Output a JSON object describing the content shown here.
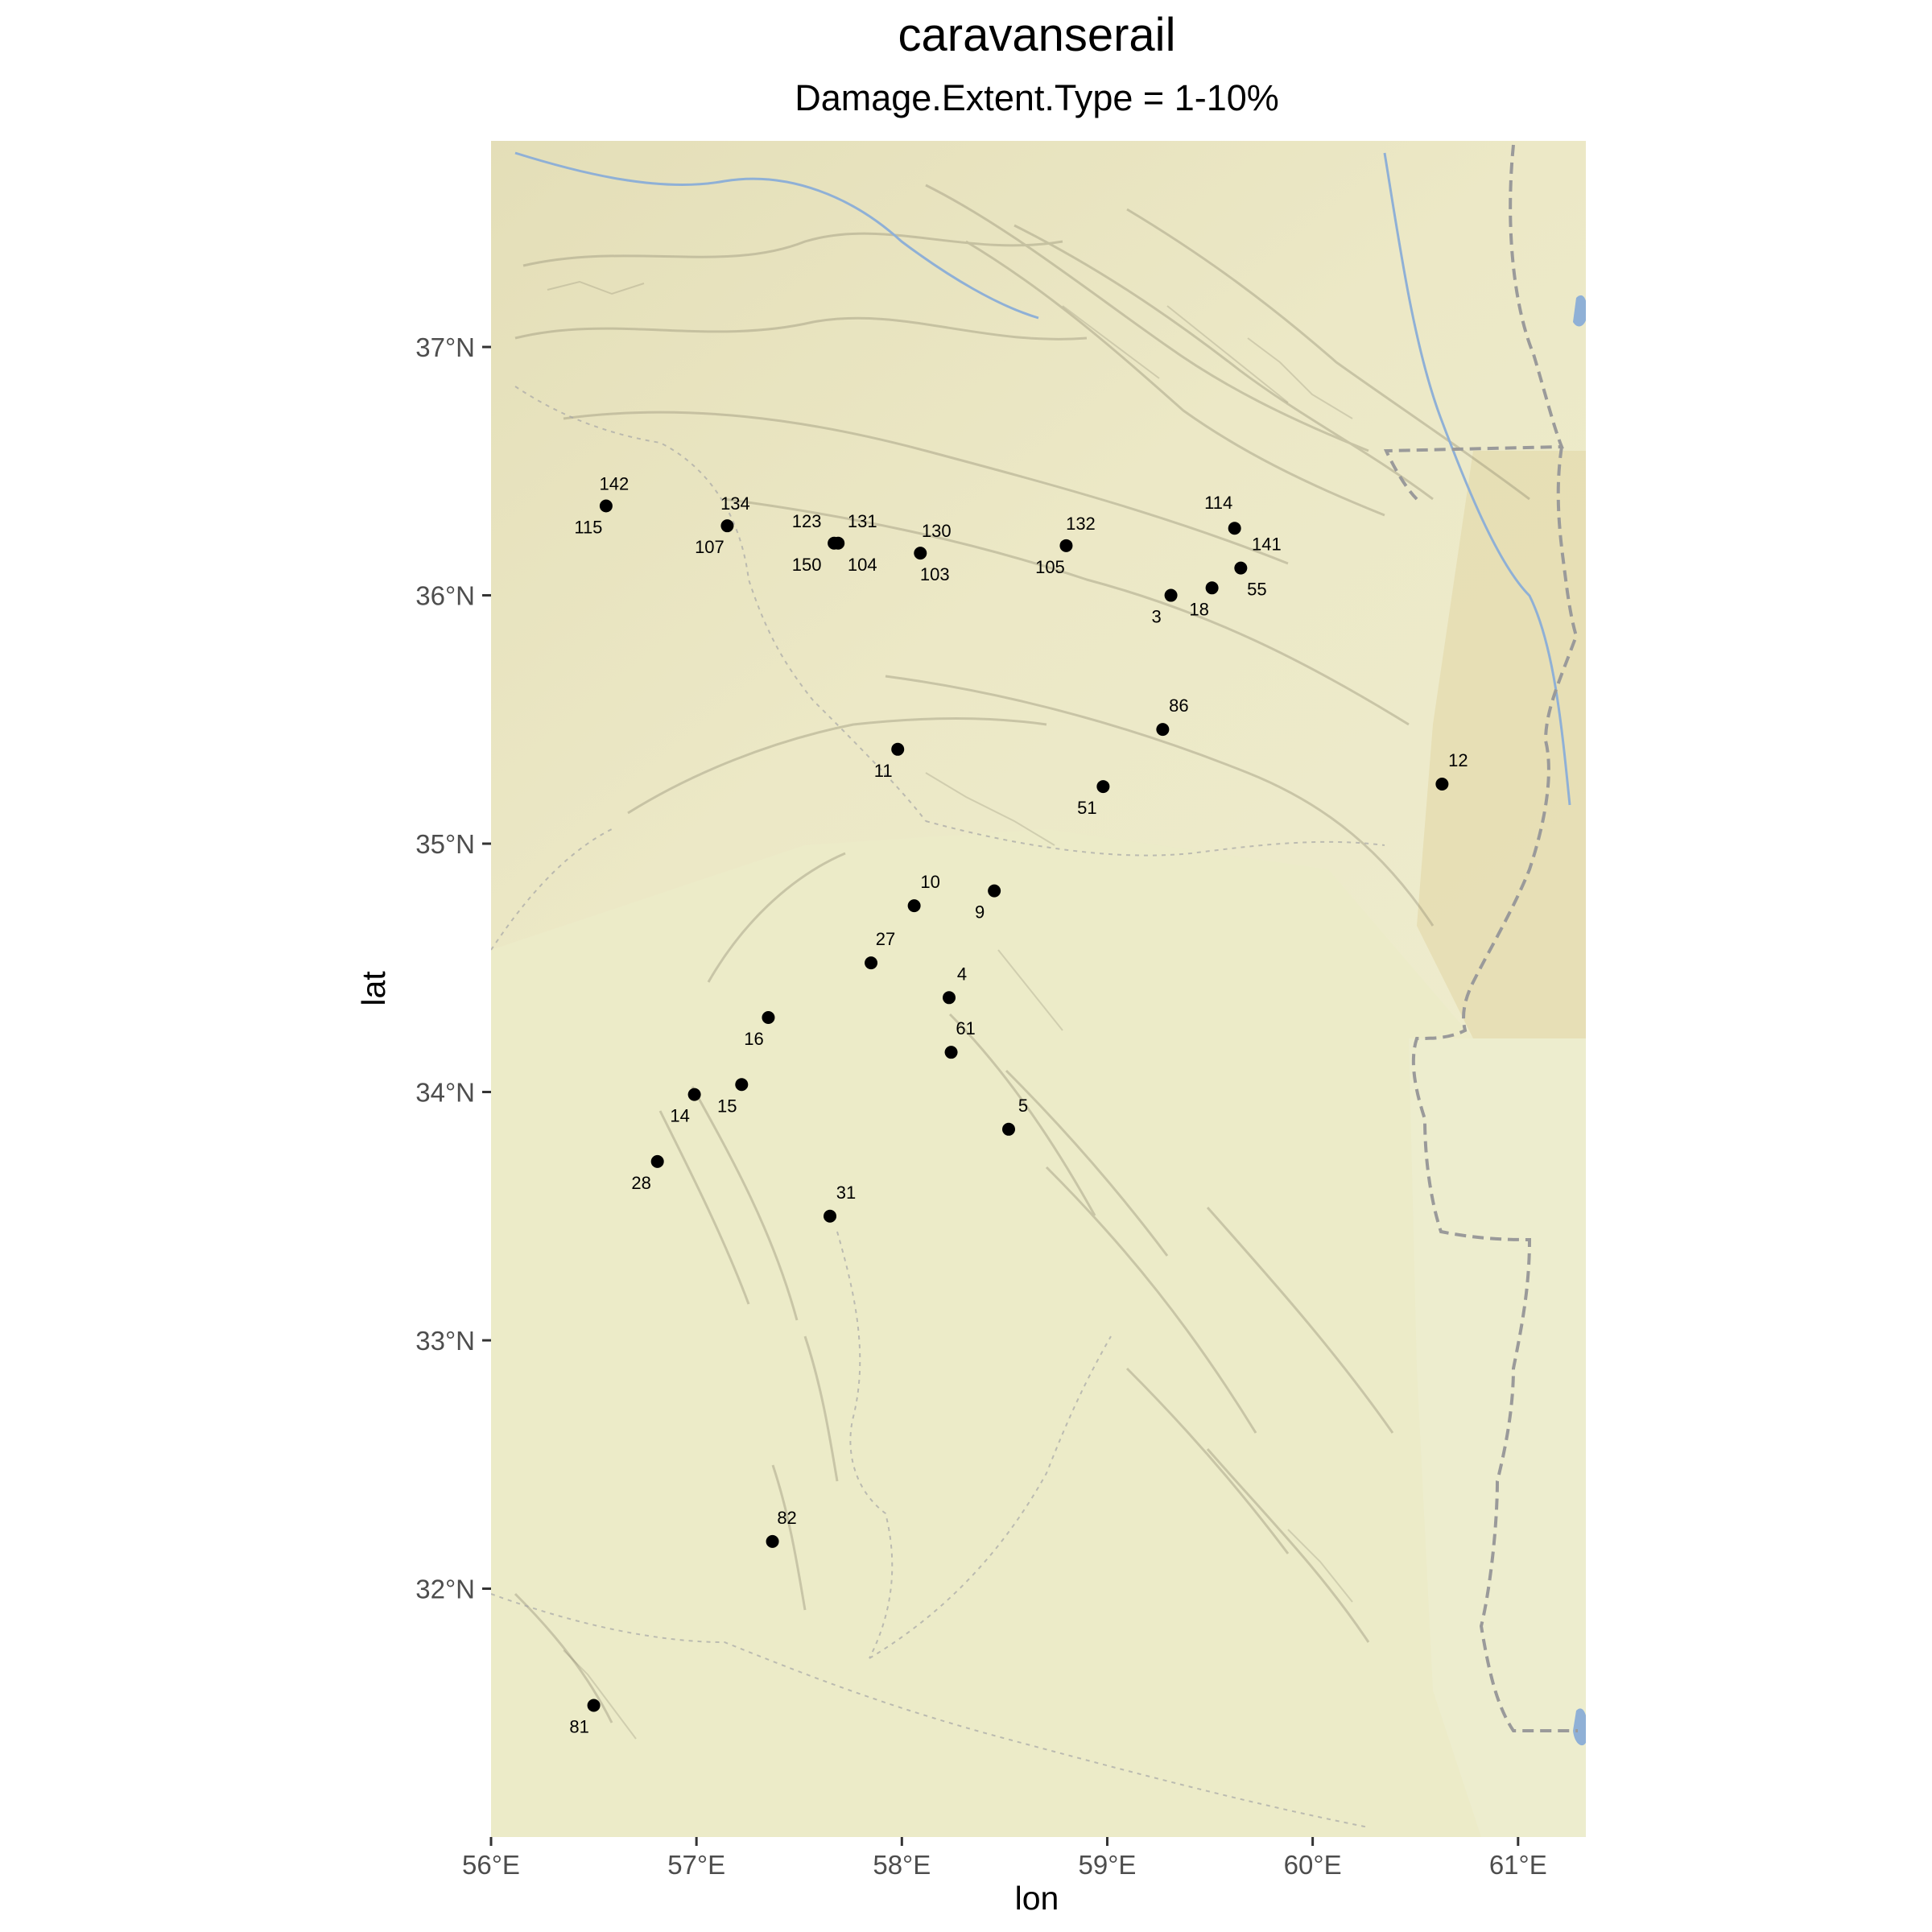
{
  "title": "caravanserail",
  "subtitle": "Damage.Extent.Type = 1-10%",
  "colors": {
    "map_base": "#ecebc8",
    "map_dark": "#d9d2a8",
    "relief": "#8f8a70",
    "water": "#8fb0d6",
    "border": "#9a9a9a",
    "point": "#000000"
  },
  "chart_data": {
    "type": "scatter",
    "xlabel": "lon",
    "ylabel": "lat",
    "xlim": [
      56.0,
      61.33
    ],
    "ylim": [
      31.0,
      37.83
    ],
    "x_ticks": [
      {
        "value": 56,
        "label": "56°E"
      },
      {
        "value": 57,
        "label": "57°E"
      },
      {
        "value": 58,
        "label": "58°E"
      },
      {
        "value": 59,
        "label": "59°E"
      },
      {
        "value": 60,
        "label": "60°E"
      },
      {
        "value": 61,
        "label": "61°E"
      }
    ],
    "y_ticks": [
      {
        "value": 32,
        "label": "32°N"
      },
      {
        "value": 33,
        "label": "33°N"
      },
      {
        "value": 34,
        "label": "34°N"
      },
      {
        "value": 35,
        "label": "35°N"
      },
      {
        "value": 36,
        "label": "36°N"
      },
      {
        "value": 37,
        "label": "37°N"
      }
    ],
    "points": [
      {
        "lon": 56.56,
        "lat": 36.36,
        "labels": [
          {
            "text": "142",
            "dx": 10,
            "dy": -20
          },
          {
            "text": "115",
            "dx": -22,
            "dy": 34
          }
        ]
      },
      {
        "lon": 57.15,
        "lat": 36.28,
        "labels": [
          {
            "text": "134",
            "dx": 10,
            "dy": -20
          },
          {
            "text": "107",
            "dx": -22,
            "dy": 34
          }
        ]
      },
      {
        "lon": 57.67,
        "lat": 36.21,
        "labels": [
          {
            "text": "123",
            "dx": -34,
            "dy": -20
          },
          {
            "text": "150",
            "dx": -34,
            "dy": 34
          }
        ]
      },
      {
        "lon": 57.69,
        "lat": 36.21,
        "labels": [
          {
            "text": "131",
            "dx": 30,
            "dy": -20
          },
          {
            "text": "104",
            "dx": 30,
            "dy": 34
          }
        ]
      },
      {
        "lon": 58.09,
        "lat": 36.17,
        "labels": [
          {
            "text": "130",
            "dx": 20,
            "dy": -20
          },
          {
            "text": "103",
            "dx": 18,
            "dy": 34
          }
        ]
      },
      {
        "lon": 58.8,
        "lat": 36.2,
        "labels": [
          {
            "text": "132",
            "dx": 18,
            "dy": -20
          },
          {
            "text": "105",
            "dx": -20,
            "dy": 34
          }
        ]
      },
      {
        "lon": 59.62,
        "lat": 36.27,
        "labels": [
          {
            "text": "114",
            "dx": -20,
            "dy": -24
          }
        ]
      },
      {
        "lon": 59.65,
        "lat": 36.11,
        "labels": [
          {
            "text": "141",
            "dx": 32,
            "dy": -22
          },
          {
            "text": "55",
            "dx": 20,
            "dy": 34
          }
        ]
      },
      {
        "lon": 59.31,
        "lat": 36.0,
        "labels": [
          {
            "text": "3",
            "dx": -18,
            "dy": 34
          }
        ]
      },
      {
        "lon": 59.51,
        "lat": 36.03,
        "labels": [
          {
            "text": "18",
            "dx": -16,
            "dy": 34
          }
        ]
      },
      {
        "lon": 59.27,
        "lat": 35.46,
        "labels": [
          {
            "text": "86",
            "dx": 20,
            "dy": -22
          }
        ]
      },
      {
        "lon": 57.98,
        "lat": 35.38,
        "labels": [
          {
            "text": "11",
            "dx": -18,
            "dy": 34
          }
        ]
      },
      {
        "lon": 58.98,
        "lat": 35.23,
        "labels": [
          {
            "text": "51",
            "dx": -20,
            "dy": 34
          }
        ]
      },
      {
        "lon": 60.63,
        "lat": 35.24,
        "labels": [
          {
            "text": "12",
            "dx": 20,
            "dy": -22
          }
        ]
      },
      {
        "lon": 58.06,
        "lat": 34.75,
        "labels": [
          {
            "text": "10",
            "dx": 20,
            "dy": -22
          }
        ]
      },
      {
        "lon": 58.45,
        "lat": 34.81,
        "labels": [
          {
            "text": "9",
            "dx": -18,
            "dy": 34
          }
        ]
      },
      {
        "lon": 57.85,
        "lat": 34.52,
        "labels": [
          {
            "text": "27",
            "dx": 18,
            "dy": -22
          }
        ]
      },
      {
        "lon": 58.23,
        "lat": 34.38,
        "labels": [
          {
            "text": "4",
            "dx": 16,
            "dy": -22
          }
        ]
      },
      {
        "lon": 58.24,
        "lat": 34.16,
        "labels": [
          {
            "text": "61",
            "dx": 18,
            "dy": -22
          }
        ]
      },
      {
        "lon": 57.35,
        "lat": 34.3,
        "labels": [
          {
            "text": "16",
            "dx": -18,
            "dy": 34
          }
        ]
      },
      {
        "lon": 56.99,
        "lat": 33.99,
        "labels": [
          {
            "text": "14",
            "dx": -18,
            "dy": 34
          }
        ]
      },
      {
        "lon": 57.22,
        "lat": 34.03,
        "labels": [
          {
            "text": "15",
            "dx": -18,
            "dy": 34
          }
        ]
      },
      {
        "lon": 58.52,
        "lat": 33.85,
        "labels": [
          {
            "text": "5",
            "dx": 18,
            "dy": -22
          }
        ]
      },
      {
        "lon": 56.81,
        "lat": 33.72,
        "labels": [
          {
            "text": "28",
            "dx": -20,
            "dy": 34
          }
        ]
      },
      {
        "lon": 57.65,
        "lat": 33.5,
        "labels": [
          {
            "text": "31",
            "dx": 20,
            "dy": -22
          }
        ]
      },
      {
        "lon": 57.37,
        "lat": 32.19,
        "labels": [
          {
            "text": "82",
            "dx": 18,
            "dy": -22
          }
        ]
      },
      {
        "lon": 56.5,
        "lat": 31.53,
        "labels": [
          {
            "text": "81",
            "dx": -18,
            "dy": 34
          }
        ]
      }
    ]
  }
}
